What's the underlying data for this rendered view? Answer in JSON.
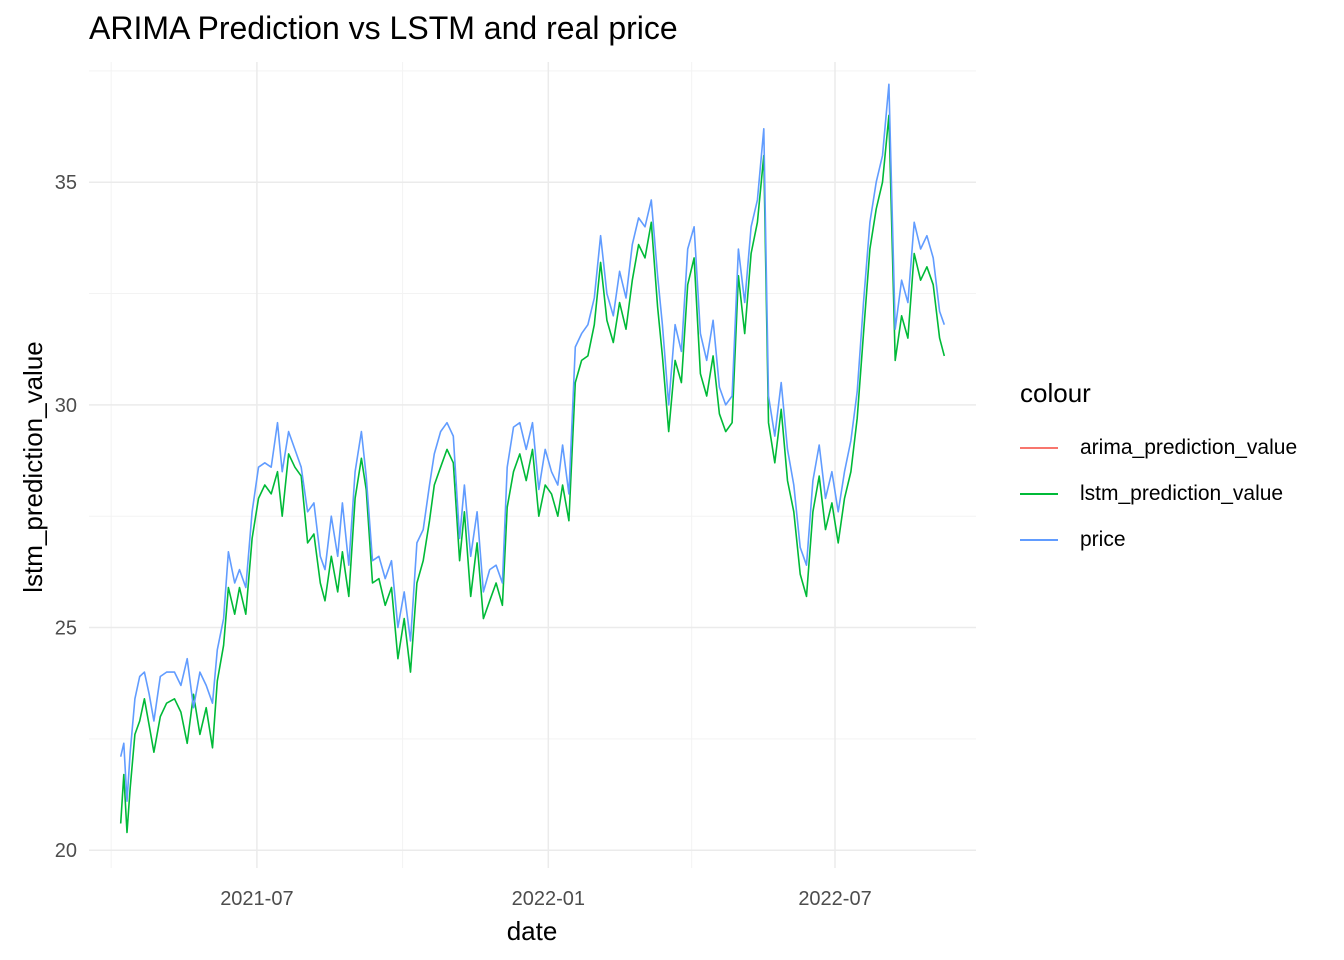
{
  "chart_data": {
    "type": "line",
    "title": "ARIMA Prediction vs LSTM and real price",
    "xlabel": "date",
    "ylabel": "lstm_prediction_value",
    "xlim": [
      "2021-03-17",
      "2022-09-28"
    ],
    "ylim": [
      19.6,
      37.7
    ],
    "x_ticks": [
      "2021-07-01",
      "2022-01-01",
      "2022-07-01"
    ],
    "x_tick_labels": [
      "2021-07",
      "2022-01",
      "2022-07"
    ],
    "y_ticks": [
      20,
      25,
      30,
      35
    ],
    "grid": true,
    "legend_title": "colour",
    "legend_position": "right",
    "series": [
      {
        "name": "arima_prediction_value",
        "color": "#F8766D",
        "points": []
      },
      {
        "name": "lstm_prediction_value",
        "color": "#00BA38",
        "points": [
          [
            "2021-04-06",
            20.6
          ],
          [
            "2021-04-08",
            21.7
          ],
          [
            "2021-04-10",
            20.4
          ],
          [
            "2021-04-12",
            21.4
          ],
          [
            "2021-04-15",
            22.6
          ],
          [
            "2021-04-18",
            22.9
          ],
          [
            "2021-04-21",
            23.4
          ],
          [
            "2021-04-24",
            22.8
          ],
          [
            "2021-04-27",
            22.2
          ],
          [
            "2021-05-01",
            23.0
          ],
          [
            "2021-05-05",
            23.3
          ],
          [
            "2021-05-10",
            23.4
          ],
          [
            "2021-05-14",
            23.1
          ],
          [
            "2021-05-18",
            22.4
          ],
          [
            "2021-05-22",
            23.5
          ],
          [
            "2021-05-26",
            22.6
          ],
          [
            "2021-05-30",
            23.2
          ],
          [
            "2021-06-03",
            22.3
          ],
          [
            "2021-06-06",
            23.8
          ],
          [
            "2021-06-10",
            24.6
          ],
          [
            "2021-06-13",
            25.9
          ],
          [
            "2021-06-17",
            25.3
          ],
          [
            "2021-06-20",
            25.9
          ],
          [
            "2021-06-24",
            25.3
          ],
          [
            "2021-06-28",
            27.0
          ],
          [
            "2021-07-02",
            27.9
          ],
          [
            "2021-07-06",
            28.2
          ],
          [
            "2021-07-10",
            28.0
          ],
          [
            "2021-07-14",
            28.5
          ],
          [
            "2021-07-17",
            27.5
          ],
          [
            "2021-07-21",
            28.9
          ],
          [
            "2021-07-25",
            28.6
          ],
          [
            "2021-07-29",
            28.4
          ],
          [
            "2021-08-02",
            26.9
          ],
          [
            "2021-08-06",
            27.1
          ],
          [
            "2021-08-10",
            26.0
          ],
          [
            "2021-08-13",
            25.6
          ],
          [
            "2021-08-17",
            26.6
          ],
          [
            "2021-08-21",
            25.8
          ],
          [
            "2021-08-24",
            26.7
          ],
          [
            "2021-08-28",
            25.7
          ],
          [
            "2021-09-01",
            27.9
          ],
          [
            "2021-09-05",
            28.8
          ],
          [
            "2021-09-08",
            28.1
          ],
          [
            "2021-09-12",
            26.0
          ],
          [
            "2021-09-16",
            26.1
          ],
          [
            "2021-09-20",
            25.5
          ],
          [
            "2021-09-24",
            25.9
          ],
          [
            "2021-09-28",
            24.3
          ],
          [
            "2021-10-02",
            25.2
          ],
          [
            "2021-10-06",
            24.0
          ],
          [
            "2021-10-10",
            26.0
          ],
          [
            "2021-10-14",
            26.5
          ],
          [
            "2021-10-18",
            27.4
          ],
          [
            "2021-10-21",
            28.2
          ],
          [
            "2021-10-25",
            28.6
          ],
          [
            "2021-10-29",
            29.0
          ],
          [
            "2021-11-02",
            28.7
          ],
          [
            "2021-11-06",
            26.5
          ],
          [
            "2021-11-09",
            27.6
          ],
          [
            "2021-11-13",
            25.7
          ],
          [
            "2021-11-17",
            26.9
          ],
          [
            "2021-11-21",
            25.2
          ],
          [
            "2021-11-25",
            25.6
          ],
          [
            "2021-11-29",
            26.0
          ],
          [
            "2021-12-03",
            25.5
          ],
          [
            "2021-12-06",
            27.7
          ],
          [
            "2021-12-10",
            28.5
          ],
          [
            "2021-12-14",
            28.9
          ],
          [
            "2021-12-18",
            28.3
          ],
          [
            "2021-12-22",
            29.0
          ],
          [
            "2021-12-26",
            27.5
          ],
          [
            "2021-12-30",
            28.2
          ],
          [
            "2022-01-03",
            28.0
          ],
          [
            "2022-01-07",
            27.5
          ],
          [
            "2022-01-10",
            28.2
          ],
          [
            "2022-01-14",
            27.4
          ],
          [
            "2022-01-18",
            30.5
          ],
          [
            "2022-01-22",
            31.0
          ],
          [
            "2022-01-26",
            31.1
          ],
          [
            "2022-01-30",
            31.8
          ],
          [
            "2022-02-03",
            33.2
          ],
          [
            "2022-02-07",
            31.9
          ],
          [
            "2022-02-11",
            31.4
          ],
          [
            "2022-02-15",
            32.3
          ],
          [
            "2022-02-19",
            31.7
          ],
          [
            "2022-02-23",
            32.8
          ],
          [
            "2022-02-27",
            33.6
          ],
          [
            "2022-03-03",
            33.3
          ],
          [
            "2022-03-07",
            34.1
          ],
          [
            "2022-03-11",
            32.2
          ],
          [
            "2022-03-14",
            31.1
          ],
          [
            "2022-03-18",
            29.4
          ],
          [
            "2022-03-22",
            31.0
          ],
          [
            "2022-03-26",
            30.5
          ],
          [
            "2022-03-30",
            32.7
          ],
          [
            "2022-04-03",
            33.3
          ],
          [
            "2022-04-07",
            30.7
          ],
          [
            "2022-04-11",
            30.2
          ],
          [
            "2022-04-15",
            31.1
          ],
          [
            "2022-04-19",
            29.8
          ],
          [
            "2022-04-23",
            29.4
          ],
          [
            "2022-04-27",
            29.6
          ],
          [
            "2022-05-01",
            32.9
          ],
          [
            "2022-05-05",
            31.6
          ],
          [
            "2022-05-09",
            33.4
          ],
          [
            "2022-05-13",
            34.1
          ],
          [
            "2022-05-17",
            35.6
          ],
          [
            "2022-05-20",
            29.6
          ],
          [
            "2022-05-24",
            28.7
          ],
          [
            "2022-05-28",
            29.9
          ],
          [
            "2022-06-01",
            28.3
          ],
          [
            "2022-06-05",
            27.6
          ],
          [
            "2022-06-09",
            26.2
          ],
          [
            "2022-06-13",
            25.7
          ],
          [
            "2022-06-17",
            27.6
          ],
          [
            "2022-06-21",
            28.4
          ],
          [
            "2022-06-25",
            27.2
          ],
          [
            "2022-06-29",
            27.8
          ],
          [
            "2022-07-03",
            26.9
          ],
          [
            "2022-07-07",
            27.9
          ],
          [
            "2022-07-11",
            28.5
          ],
          [
            "2022-07-15",
            29.7
          ],
          [
            "2022-07-19",
            31.6
          ],
          [
            "2022-07-23",
            33.5
          ],
          [
            "2022-07-27",
            34.4
          ],
          [
            "2022-07-31",
            35.0
          ],
          [
            "2022-08-04",
            36.5
          ],
          [
            "2022-08-08",
            31.0
          ],
          [
            "2022-08-12",
            32.0
          ],
          [
            "2022-08-16",
            31.5
          ],
          [
            "2022-08-20",
            33.4
          ],
          [
            "2022-08-24",
            32.8
          ],
          [
            "2022-08-28",
            33.1
          ],
          [
            "2022-09-01",
            32.7
          ],
          [
            "2022-09-05",
            31.5
          ],
          [
            "2022-09-08",
            31.1
          ]
        ]
      },
      {
        "name": "price",
        "color": "#619CFF",
        "points": [
          [
            "2021-04-06",
            22.1
          ],
          [
            "2021-04-08",
            22.4
          ],
          [
            "2021-04-10",
            21.1
          ],
          [
            "2021-04-12",
            22.2
          ],
          [
            "2021-04-15",
            23.4
          ],
          [
            "2021-04-18",
            23.9
          ],
          [
            "2021-04-21",
            24.0
          ],
          [
            "2021-04-24",
            23.5
          ],
          [
            "2021-04-27",
            22.9
          ],
          [
            "2021-05-01",
            23.9
          ],
          [
            "2021-05-05",
            24.0
          ],
          [
            "2021-05-10",
            24.0
          ],
          [
            "2021-05-14",
            23.7
          ],
          [
            "2021-05-18",
            24.3
          ],
          [
            "2021-05-22",
            23.2
          ],
          [
            "2021-05-26",
            24.0
          ],
          [
            "2021-05-30",
            23.7
          ],
          [
            "2021-06-03",
            23.3
          ],
          [
            "2021-06-06",
            24.5
          ],
          [
            "2021-06-10",
            25.2
          ],
          [
            "2021-06-13",
            26.7
          ],
          [
            "2021-06-17",
            26.0
          ],
          [
            "2021-06-20",
            26.3
          ],
          [
            "2021-06-24",
            25.9
          ],
          [
            "2021-06-28",
            27.6
          ],
          [
            "2021-07-02",
            28.6
          ],
          [
            "2021-07-06",
            28.7
          ],
          [
            "2021-07-10",
            28.6
          ],
          [
            "2021-07-14",
            29.6
          ],
          [
            "2021-07-17",
            28.5
          ],
          [
            "2021-07-21",
            29.4
          ],
          [
            "2021-07-25",
            29.0
          ],
          [
            "2021-07-29",
            28.6
          ],
          [
            "2021-08-02",
            27.6
          ],
          [
            "2021-08-06",
            27.8
          ],
          [
            "2021-08-10",
            26.6
          ],
          [
            "2021-08-13",
            26.3
          ],
          [
            "2021-08-17",
            27.5
          ],
          [
            "2021-08-21",
            26.6
          ],
          [
            "2021-08-24",
            27.8
          ],
          [
            "2021-08-28",
            26.4
          ],
          [
            "2021-09-01",
            28.5
          ],
          [
            "2021-09-05",
            29.4
          ],
          [
            "2021-09-08",
            28.4
          ],
          [
            "2021-09-12",
            26.5
          ],
          [
            "2021-09-16",
            26.6
          ],
          [
            "2021-09-20",
            26.1
          ],
          [
            "2021-09-24",
            26.5
          ],
          [
            "2021-09-28",
            25.0
          ],
          [
            "2021-10-02",
            25.8
          ],
          [
            "2021-10-06",
            24.7
          ],
          [
            "2021-10-10",
            26.9
          ],
          [
            "2021-10-14",
            27.2
          ],
          [
            "2021-10-18",
            28.2
          ],
          [
            "2021-10-21",
            28.9
          ],
          [
            "2021-10-25",
            29.4
          ],
          [
            "2021-10-29",
            29.6
          ],
          [
            "2021-11-02",
            29.3
          ],
          [
            "2021-11-06",
            27.0
          ],
          [
            "2021-11-09",
            28.2
          ],
          [
            "2021-11-13",
            26.6
          ],
          [
            "2021-11-17",
            27.6
          ],
          [
            "2021-11-21",
            25.8
          ],
          [
            "2021-11-25",
            26.3
          ],
          [
            "2021-11-29",
            26.4
          ],
          [
            "2021-12-03",
            26.0
          ],
          [
            "2021-12-06",
            28.6
          ],
          [
            "2021-12-10",
            29.5
          ],
          [
            "2021-12-14",
            29.6
          ],
          [
            "2021-12-18",
            29.0
          ],
          [
            "2021-12-22",
            29.6
          ],
          [
            "2021-12-26",
            28.1
          ],
          [
            "2021-12-30",
            29.0
          ],
          [
            "2022-01-03",
            28.5
          ],
          [
            "2022-01-07",
            28.2
          ],
          [
            "2022-01-10",
            29.1
          ],
          [
            "2022-01-14",
            28.0
          ],
          [
            "2022-01-18",
            31.3
          ],
          [
            "2022-01-22",
            31.6
          ],
          [
            "2022-01-26",
            31.8
          ],
          [
            "2022-01-30",
            32.4
          ],
          [
            "2022-02-03",
            33.8
          ],
          [
            "2022-02-07",
            32.5
          ],
          [
            "2022-02-11",
            32.0
          ],
          [
            "2022-02-15",
            33.0
          ],
          [
            "2022-02-19",
            32.4
          ],
          [
            "2022-02-23",
            33.6
          ],
          [
            "2022-02-27",
            34.2
          ],
          [
            "2022-03-03",
            34.0
          ],
          [
            "2022-03-07",
            34.6
          ],
          [
            "2022-03-11",
            32.9
          ],
          [
            "2022-03-14",
            31.8
          ],
          [
            "2022-03-18",
            30.0
          ],
          [
            "2022-03-22",
            31.8
          ],
          [
            "2022-03-26",
            31.2
          ],
          [
            "2022-03-30",
            33.5
          ],
          [
            "2022-04-03",
            34.0
          ],
          [
            "2022-04-07",
            31.6
          ],
          [
            "2022-04-11",
            31.0
          ],
          [
            "2022-04-15",
            31.9
          ],
          [
            "2022-04-19",
            30.4
          ],
          [
            "2022-04-23",
            30.0
          ],
          [
            "2022-04-27",
            30.2
          ],
          [
            "2022-05-01",
            33.5
          ],
          [
            "2022-05-05",
            32.3
          ],
          [
            "2022-05-09",
            34.0
          ],
          [
            "2022-05-13",
            34.6
          ],
          [
            "2022-05-17",
            36.2
          ],
          [
            "2022-05-20",
            30.2
          ],
          [
            "2022-05-24",
            29.3
          ],
          [
            "2022-05-28",
            30.5
          ],
          [
            "2022-06-01",
            29.0
          ],
          [
            "2022-06-05",
            28.2
          ],
          [
            "2022-06-09",
            26.8
          ],
          [
            "2022-06-13",
            26.4
          ],
          [
            "2022-06-17",
            28.3
          ],
          [
            "2022-06-21",
            29.1
          ],
          [
            "2022-06-25",
            27.9
          ],
          [
            "2022-06-29",
            28.5
          ],
          [
            "2022-07-03",
            27.6
          ],
          [
            "2022-07-07",
            28.5
          ],
          [
            "2022-07-11",
            29.2
          ],
          [
            "2022-07-15",
            30.3
          ],
          [
            "2022-07-19",
            32.3
          ],
          [
            "2022-07-23",
            34.1
          ],
          [
            "2022-07-27",
            35.0
          ],
          [
            "2022-07-31",
            35.6
          ],
          [
            "2022-08-04",
            37.2
          ],
          [
            "2022-08-08",
            31.7
          ],
          [
            "2022-08-12",
            32.8
          ],
          [
            "2022-08-16",
            32.3
          ],
          [
            "2022-08-20",
            34.1
          ],
          [
            "2022-08-24",
            33.5
          ],
          [
            "2022-08-28",
            33.8
          ],
          [
            "2022-09-01",
            33.3
          ],
          [
            "2022-09-05",
            32.1
          ],
          [
            "2022-09-08",
            31.8
          ]
        ]
      }
    ]
  }
}
